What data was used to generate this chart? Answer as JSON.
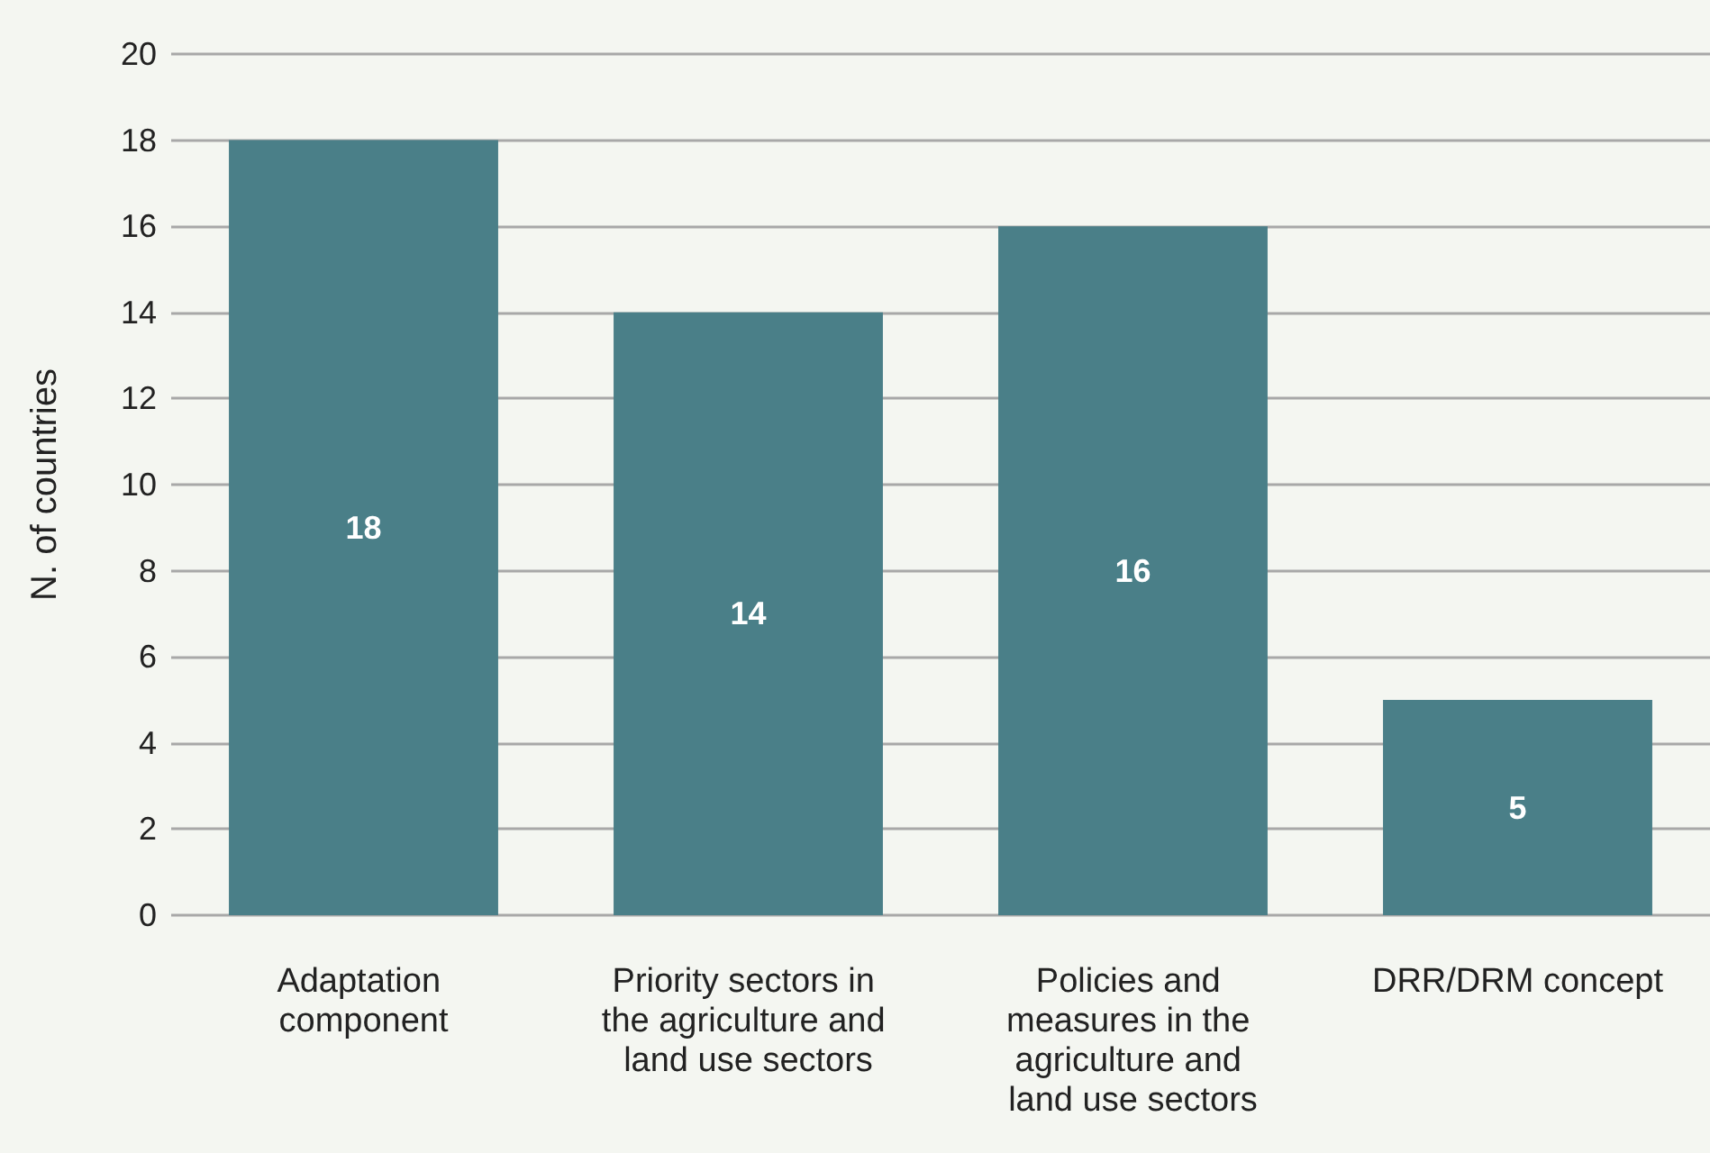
{
  "chart_data": {
    "type": "bar",
    "ylabel": "N. of countries",
    "categories": [
      "Adaptation component",
      "Priority sectors in the agriculture and land use sectors",
      "Policies and measures in the agriculture and land use sectors",
      "DRR/DRM concept"
    ],
    "values": [
      18,
      14,
      16,
      5
    ],
    "color": "#4a7f88",
    "ylim": [
      0,
      20
    ],
    "yticks": [
      0,
      2,
      4,
      6,
      8,
      10,
      12,
      14,
      16,
      18,
      20
    ],
    "grid": "y",
    "data_labels": true
  }
}
